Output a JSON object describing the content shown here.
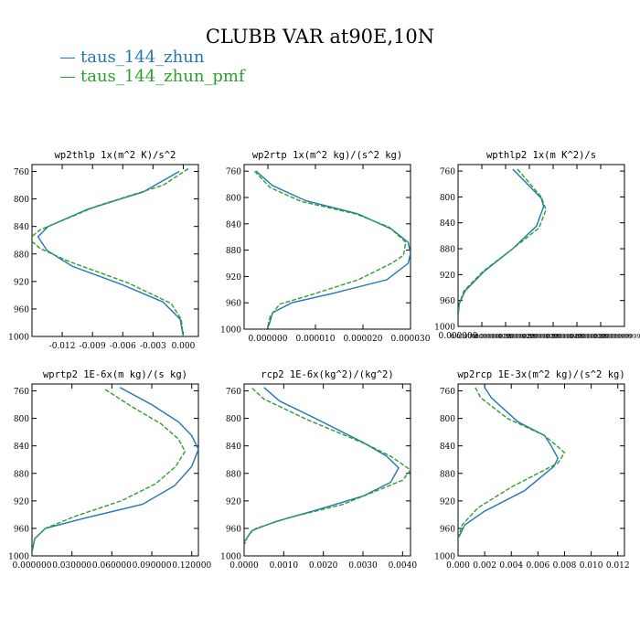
{
  "figure": {
    "title": "CLUBB VAR at90E,10N",
    "colors": {
      "series_1": "#1f77b4",
      "series_2": "#2ca02c"
    }
  },
  "legend": {
    "items": [
      {
        "label": "taus_144_zhun",
        "color": "#1f77b4",
        "style": "solid"
      },
      {
        "label": "taus_144_zhun_pmf",
        "color": "#2ca02c",
        "style": "dashed"
      }
    ]
  },
  "chart_data": [
    {
      "type": "line",
      "title": "wp2thlp   1x(m^2 K)/s^2",
      "xlim": [
        -0.015,
        0.0015
      ],
      "ylim": [
        1000,
        750
      ],
      "y_inverted": true,
      "xticks": [
        -0.012,
        -0.009,
        -0.006,
        -0.003,
        0.0
      ],
      "xtick_labels": [
        "-0.012",
        "-0.009",
        "-0.006",
        "-0.003",
        "0.000"
      ],
      "yticks": [
        760,
        800,
        840,
        880,
        920,
        960,
        1000
      ],
      "ytick_labels": [
        "760",
        "800",
        "840",
        "880",
        "920",
        "960",
        "1000"
      ],
      "series": [
        {
          "name": "taus_144_zhun",
          "points": [
            [
              -0.0004,
              760
            ],
            [
              -0.004,
              790
            ],
            [
              -0.0095,
              815
            ],
            [
              -0.0134,
              840
            ],
            [
              -0.0144,
              855
            ],
            [
              -0.0135,
              875
            ],
            [
              -0.011,
              898
            ],
            [
              -0.006,
              925
            ],
            [
              -0.002,
              950
            ],
            [
              -0.0003,
              975
            ],
            [
              0.0,
              1000
            ]
          ]
        },
        {
          "name": "taus_144_zhun_pmf",
          "points": [
            [
              0.0005,
              756
            ],
            [
              -0.002,
              780
            ],
            [
              -0.0085,
              810
            ],
            [
              -0.0142,
              845
            ],
            [
              -0.0153,
              858
            ],
            [
              -0.0142,
              872
            ],
            [
              -0.0115,
              890
            ],
            [
              -0.0055,
              922
            ],
            [
              -0.0012,
              952
            ],
            [
              -0.0002,
              975
            ],
            [
              0.0,
              1000
            ]
          ]
        }
      ]
    },
    {
      "type": "line",
      "title": "wp2rtp   1x(m^2 kg)/(s^2 kg)",
      "xlim": [
        -5e-06,
        3e-05
      ],
      "ylim": [
        1000,
        750
      ],
      "y_inverted": true,
      "xticks": [
        0.0,
        1e-05,
        2e-05,
        3e-05
      ],
      "xtick_labels": [
        "0.000000",
        "0.000010",
        "0.000020",
        "0.000030"
      ],
      "yticks": [
        760,
        800,
        840,
        880,
        920,
        960,
        1000
      ],
      "ytick_labels": [
        "760",
        "800",
        "840",
        "880",
        "920",
        "960",
        "1000"
      ],
      "series": [
        {
          "name": "taus_144_zhun",
          "points": [
            [
              -2.5e-06,
              760
            ],
            [
              1e-06,
              782
            ],
            [
              8e-06,
              805
            ],
            [
              1.9e-05,
              825
            ],
            [
              2.6e-05,
              848
            ],
            [
              2.95e-05,
              868
            ],
            [
              3e-05,
              885
            ],
            [
              2.95e-05,
              900
            ],
            [
              2.5e-05,
              925
            ],
            [
              1.4e-05,
              945
            ],
            [
              5e-06,
              960
            ],
            [
              1e-06,
              975
            ],
            [
              2e-07,
              995
            ]
          ]
        },
        {
          "name": "taus_144_zhun_pmf",
          "points": [
            [
              -2.8e-06,
              760
            ],
            [
              5e-07,
              785
            ],
            [
              7e-06,
              806
            ],
            [
              1.85e-05,
              825
            ],
            [
              2.55e-05,
              845
            ],
            [
              2.9e-05,
              868
            ],
            [
              2.85e-05,
              888
            ],
            [
              2.6e-05,
              900
            ],
            [
              1.9e-05,
              925
            ],
            [
              9e-06,
              948
            ],
            [
              2.5e-06,
              962
            ],
            [
              5e-07,
              980
            ],
            [
              0.0,
              995
            ]
          ]
        }
      ]
    },
    {
      "type": "line",
      "title": "wpthlp2   1x(m K^2)/s",
      "xlim": [
        0.0,
        7e-07
      ],
      "ylim": [
        1000,
        750
      ],
      "y_inverted": true,
      "xticks": [
        0.0,
        1e-07,
        2e-07,
        3e-07,
        4e-07,
        5e-07,
        6e-07,
        7e-07
      ],
      "xtick_labels": [
        "0.000000",
        "0.000000099999999",
        "0.000000199999999",
        "0.000000299999999",
        "0.000000399999999",
        "0.000000499999999",
        "0.000000599999999",
        "0.000000699999999"
      ],
      "yticks": [
        760,
        800,
        840,
        880,
        920,
        960,
        1000
      ],
      "ytick_labels": [
        "760",
        "800",
        "840",
        "880",
        "920",
        "960",
        "1000"
      ],
      "series": [
        {
          "name": "taus_144_zhun",
          "points": [
            [
              2.3e-07,
              757
            ],
            [
              3.5e-07,
              802
            ],
            [
              3.6e-07,
              815
            ],
            [
              3.3e-07,
              845
            ],
            [
              2.3e-07,
              880
            ],
            [
              1.1e-07,
              915
            ],
            [
              3e-08,
              945
            ],
            [
              5e-09,
              965
            ],
            [
              0.0,
              985
            ]
          ]
        },
        {
          "name": "taus_144_zhun_pmf",
          "points": [
            [
              2.5e-07,
              757
            ],
            [
              3.5e-07,
              800
            ],
            [
              3.7e-07,
              820
            ],
            [
              3.4e-07,
              848
            ],
            [
              2.3e-07,
              880
            ],
            [
              1.05e-07,
              915
            ],
            [
              2.5e-08,
              945
            ],
            [
              5e-09,
              965
            ],
            [
              0.0,
              985
            ]
          ]
        }
      ]
    },
    {
      "type": "line",
      "title": "wprtp2   1E-6x(m kg)/(s kg)",
      "xlim": [
        0.0,
        0.125
      ],
      "ylim": [
        1000,
        750
      ],
      "y_inverted": true,
      "xticks": [
        0.0,
        0.03,
        0.06,
        0.09,
        0.12
      ],
      "xtick_labels": [
        "0.000000",
        "0.030000",
        "0.060000",
        "0.090000",
        "0.120000"
      ],
      "yticks": [
        760,
        800,
        840,
        880,
        920,
        960,
        1000
      ],
      "ytick_labels": [
        "760",
        "800",
        "840",
        "880",
        "920",
        "960",
        "1000"
      ],
      "series": [
        {
          "name": "taus_144_zhun",
          "points": [
            [
              0.066,
              755
            ],
            [
              0.09,
              780
            ],
            [
              0.11,
              805
            ],
            [
              0.12,
              825
            ],
            [
              0.125,
              845
            ],
            [
              0.12,
              870
            ],
            [
              0.107,
              898
            ],
            [
              0.083,
              925
            ],
            [
              0.04,
              945
            ],
            [
              0.01,
              960
            ],
            [
              0.002,
              975
            ],
            [
              0.0,
              995
            ]
          ]
        },
        {
          "name": "taus_144_zhun_pmf",
          "points": [
            [
              0.055,
              758
            ],
            [
              0.075,
              783
            ],
            [
              0.097,
              808
            ],
            [
              0.11,
              830
            ],
            [
              0.115,
              848
            ],
            [
              0.108,
              870
            ],
            [
              0.093,
              895
            ],
            [
              0.067,
              920
            ],
            [
              0.033,
              942
            ],
            [
              0.01,
              960
            ],
            [
              0.002,
              975
            ],
            [
              0.0,
              995
            ]
          ]
        }
      ]
    },
    {
      "type": "line",
      "title": "rcp2   1E-6x(kg^2)/(kg^2)",
      "xlim": [
        0.0,
        0.0042
      ],
      "ylim": [
        1000,
        750
      ],
      "y_inverted": true,
      "xticks": [
        0.0,
        0.001,
        0.002,
        0.003,
        0.004
      ],
      "xtick_labels": [
        "0.0000",
        "0.0010",
        "0.0020",
        "0.0030",
        "0.0040"
      ],
      "yticks": [
        760,
        800,
        840,
        880,
        920,
        960,
        1000
      ],
      "ytick_labels": [
        "760",
        "800",
        "840",
        "880",
        "920",
        "960",
        "1000"
      ],
      "series": [
        {
          "name": "taus_144_zhun",
          "points": [
            [
              0.0005,
              755
            ],
            [
              0.0009,
              775
            ],
            [
              0.0018,
              800
            ],
            [
              0.003,
              835
            ],
            [
              0.0036,
              855
            ],
            [
              0.0039,
              872
            ],
            [
              0.0037,
              893
            ],
            [
              0.003,
              913
            ],
            [
              0.0019,
              932
            ],
            [
              0.0008,
              950
            ],
            [
              0.0002,
              963
            ],
            [
              0.0,
              980
            ]
          ]
        },
        {
          "name": "taus_144_zhun_pmf",
          "points": [
            [
              0.0002,
              756
            ],
            [
              0.0005,
              772
            ],
            [
              0.0016,
              802
            ],
            [
              0.0031,
              838
            ],
            [
              0.0037,
              855
            ],
            [
              0.0042,
              875
            ],
            [
              0.004,
              890
            ],
            [
              0.0025,
              925
            ],
            [
              0.0011,
              945
            ],
            [
              0.0003,
              960
            ],
            [
              0.0001,
              970
            ],
            [
              0.0,
              985
            ]
          ]
        }
      ]
    },
    {
      "type": "line",
      "title": "wp2rcp   1E-3x(m^2 kg)/(s^2 kg)",
      "xlim": [
        0.0,
        0.0125
      ],
      "ylim": [
        1000,
        750
      ],
      "y_inverted": true,
      "xticks": [
        0.0,
        0.002,
        0.004,
        0.006,
        0.008,
        0.01,
        0.012
      ],
      "xtick_labels": [
        "0.000",
        "0.002",
        "0.004",
        "0.006",
        "0.008",
        "0.010",
        "0.012"
      ],
      "yticks": [
        760,
        800,
        840,
        880,
        920,
        960,
        1000
      ],
      "ytick_labels": [
        "760",
        "800",
        "840",
        "880",
        "920",
        "960",
        "1000"
      ],
      "series": [
        {
          "name": "taus_144_zhun",
          "points": [
            [
              0.002,
              755
            ],
            [
              0.0025,
              770
            ],
            [
              0.0045,
              805
            ],
            [
              0.0065,
              825
            ],
            [
              0.007,
              840
            ],
            [
              0.0075,
              858
            ],
            [
              0.0072,
              870
            ],
            [
              0.005,
              905
            ],
            [
              0.002,
              935
            ],
            [
              0.0005,
              955
            ],
            [
              0.0,
              975
            ]
          ]
        },
        {
          "name": "taus_144_zhun_pmf",
          "points": [
            [
              0.0013,
              755
            ],
            [
              0.0017,
              770
            ],
            [
              0.0037,
              800
            ],
            [
              0.0065,
              825
            ],
            [
              0.0073,
              838
            ],
            [
              0.008,
              850
            ],
            [
              0.0075,
              865
            ],
            [
              0.004,
              900
            ],
            [
              0.0015,
              930
            ],
            [
              0.0003,
              955
            ],
            [
              0.0,
              975
            ]
          ]
        }
      ]
    }
  ]
}
